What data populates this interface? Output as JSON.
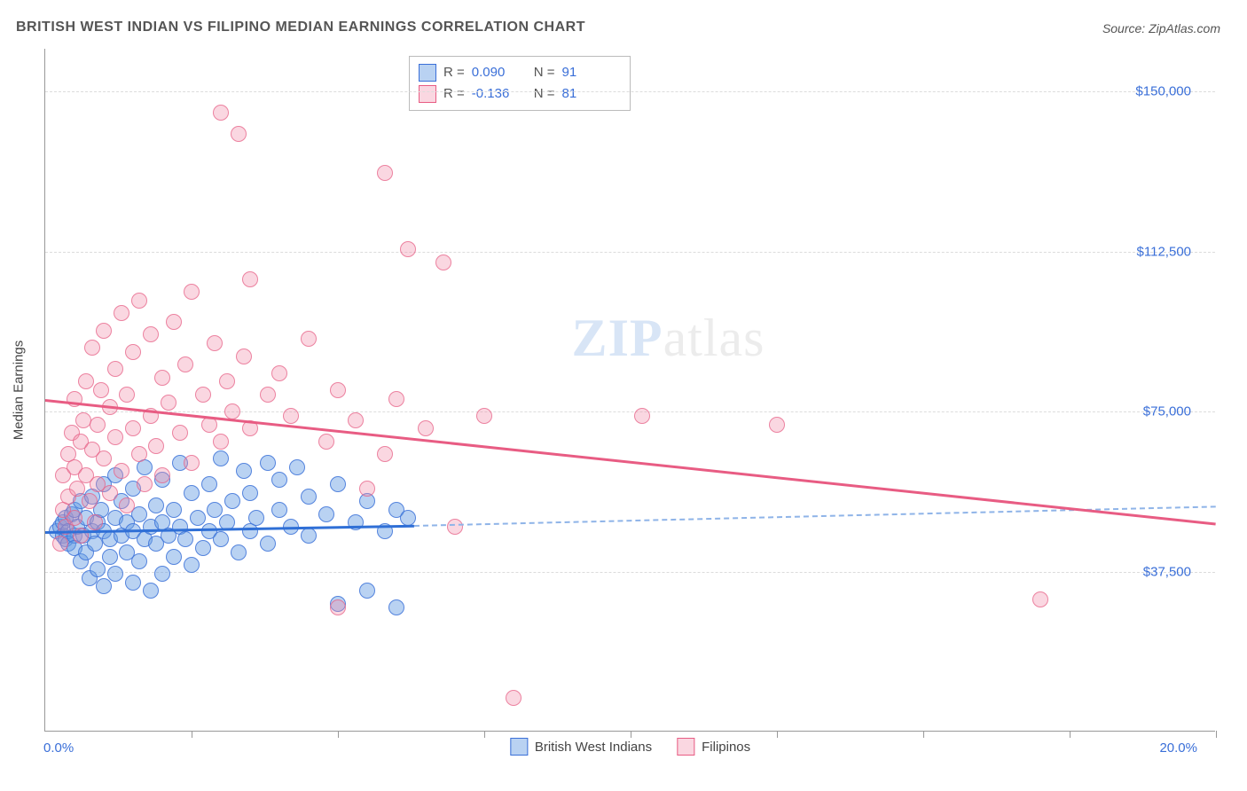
{
  "title": "BRITISH WEST INDIAN VS FILIPINO MEDIAN EARNINGS CORRELATION CHART",
  "source": "Source: ZipAtlas.com",
  "watermark_zip": "ZIP",
  "watermark_atlas": "atlas",
  "chart": {
    "type": "scatter",
    "background_color": "#ffffff",
    "grid_color": "#dcdcdc",
    "axis_color": "#999999",
    "text_color": "#555555",
    "value_color": "#3a6fd8",
    "yaxis_title": "Median Earnings",
    "xlim": [
      0,
      20
    ],
    "ylim": [
      0,
      160000
    ],
    "xlabel_min": "0.0%",
    "xlabel_max": "20.0%",
    "yticks": [
      {
        "v": 37500,
        "label": "$37,500"
      },
      {
        "v": 75000,
        "label": "$75,000"
      },
      {
        "v": 112500,
        "label": "$112,500"
      },
      {
        "v": 150000,
        "label": "$150,000"
      }
    ],
    "xticks_pos": [
      2.5,
      5,
      7.5,
      10,
      12.5,
      15,
      17.5,
      20
    ],
    "marker_radius": 9,
    "series": [
      {
        "name": "British West Indians",
        "color_fill": "rgba(99,156,227,0.45)",
        "color_stroke": "#3a6fd8",
        "r_value": "0.090",
        "n_value": "91",
        "trend": {
          "x1": 0,
          "y1": 47000,
          "x2": 6.3,
          "y2": 48500,
          "x2_extrap": 20,
          "y2_extrap": 53000
        },
        "points": [
          [
            0.2,
            47000
          ],
          [
            0.25,
            48000
          ],
          [
            0.3,
            46000
          ],
          [
            0.3,
            49000
          ],
          [
            0.35,
            45000
          ],
          [
            0.35,
            50000
          ],
          [
            0.4,
            47000
          ],
          [
            0.4,
            44000
          ],
          [
            0.45,
            51000
          ],
          [
            0.5,
            46000
          ],
          [
            0.5,
            52000
          ],
          [
            0.5,
            43000
          ],
          [
            0.55,
            48000
          ],
          [
            0.6,
            40000
          ],
          [
            0.6,
            54000
          ],
          [
            0.65,
            46000
          ],
          [
            0.7,
            42000
          ],
          [
            0.7,
            50000
          ],
          [
            0.75,
            36000
          ],
          [
            0.8,
            47000
          ],
          [
            0.8,
            55000
          ],
          [
            0.85,
            44000
          ],
          [
            0.9,
            49000
          ],
          [
            0.9,
            38000
          ],
          [
            0.95,
            52000
          ],
          [
            1.0,
            34000
          ],
          [
            1.0,
            47000
          ],
          [
            1.0,
            58000
          ],
          [
            1.1,
            45000
          ],
          [
            1.1,
            41000
          ],
          [
            1.2,
            50000
          ],
          [
            1.2,
            37000
          ],
          [
            1.2,
            60000
          ],
          [
            1.3,
            46000
          ],
          [
            1.3,
            54000
          ],
          [
            1.4,
            42000
          ],
          [
            1.4,
            49000
          ],
          [
            1.5,
            35000
          ],
          [
            1.5,
            57000
          ],
          [
            1.5,
            47000
          ],
          [
            1.6,
            51000
          ],
          [
            1.6,
            40000
          ],
          [
            1.7,
            45000
          ],
          [
            1.7,
            62000
          ],
          [
            1.8,
            48000
          ],
          [
            1.8,
            33000
          ],
          [
            1.9,
            53000
          ],
          [
            1.9,
            44000
          ],
          [
            2.0,
            49000
          ],
          [
            2.0,
            59000
          ],
          [
            2.0,
            37000
          ],
          [
            2.1,
            46000
          ],
          [
            2.2,
            52000
          ],
          [
            2.2,
            41000
          ],
          [
            2.3,
            48000
          ],
          [
            2.3,
            63000
          ],
          [
            2.4,
            45000
          ],
          [
            2.5,
            56000
          ],
          [
            2.5,
            39000
          ],
          [
            2.6,
            50000
          ],
          [
            2.7,
            43000
          ],
          [
            2.8,
            58000
          ],
          [
            2.8,
            47000
          ],
          [
            2.9,
            52000
          ],
          [
            3.0,
            45000
          ],
          [
            3.0,
            64000
          ],
          [
            3.1,
            49000
          ],
          [
            3.2,
            54000
          ],
          [
            3.3,
            42000
          ],
          [
            3.4,
            61000
          ],
          [
            3.5,
            47000
          ],
          [
            3.5,
            56000
          ],
          [
            3.6,
            50000
          ],
          [
            3.8,
            63000
          ],
          [
            3.8,
            44000
          ],
          [
            4.0,
            52000
          ],
          [
            4.0,
            59000
          ],
          [
            4.2,
            48000
          ],
          [
            4.3,
            62000
          ],
          [
            4.5,
            46000
          ],
          [
            4.5,
            55000
          ],
          [
            4.8,
            51000
          ],
          [
            5.0,
            58000
          ],
          [
            5.0,
            30000
          ],
          [
            5.3,
            49000
          ],
          [
            5.5,
            33000
          ],
          [
            5.5,
            54000
          ],
          [
            5.8,
            47000
          ],
          [
            6.0,
            52000
          ],
          [
            6.0,
            29000
          ],
          [
            6.2,
            50000
          ]
        ]
      },
      {
        "name": "Filipinos",
        "color_fill": "rgba(242,140,168,0.35)",
        "color_stroke": "#e85c83",
        "r_value": "-0.136",
        "n_value": "81",
        "trend": {
          "x1": 0,
          "y1": 78000,
          "x2": 20,
          "y2": 49000
        },
        "points": [
          [
            0.25,
            44000
          ],
          [
            0.3,
            52000
          ],
          [
            0.3,
            60000
          ],
          [
            0.35,
            48000
          ],
          [
            0.4,
            65000
          ],
          [
            0.4,
            55000
          ],
          [
            0.45,
            70000
          ],
          [
            0.5,
            50000
          ],
          [
            0.5,
            62000
          ],
          [
            0.5,
            78000
          ],
          [
            0.55,
            57000
          ],
          [
            0.6,
            68000
          ],
          [
            0.6,
            46000
          ],
          [
            0.65,
            73000
          ],
          [
            0.7,
            60000
          ],
          [
            0.7,
            82000
          ],
          [
            0.75,
            54000
          ],
          [
            0.8,
            66000
          ],
          [
            0.8,
            90000
          ],
          [
            0.85,
            49000
          ],
          [
            0.9,
            72000
          ],
          [
            0.9,
            58000
          ],
          [
            0.95,
            80000
          ],
          [
            1.0,
            64000
          ],
          [
            1.0,
            94000
          ],
          [
            1.1,
            56000
          ],
          [
            1.1,
            76000
          ],
          [
            1.2,
            69000
          ],
          [
            1.2,
            85000
          ],
          [
            1.3,
            61000
          ],
          [
            1.3,
            98000
          ],
          [
            1.4,
            53000
          ],
          [
            1.4,
            79000
          ],
          [
            1.5,
            71000
          ],
          [
            1.5,
            89000
          ],
          [
            1.6,
            65000
          ],
          [
            1.6,
            101000
          ],
          [
            1.7,
            58000
          ],
          [
            1.8,
            74000
          ],
          [
            1.8,
            93000
          ],
          [
            1.9,
            67000
          ],
          [
            2.0,
            83000
          ],
          [
            2.0,
            60000
          ],
          [
            2.1,
            77000
          ],
          [
            2.2,
            96000
          ],
          [
            2.3,
            70000
          ],
          [
            2.4,
            86000
          ],
          [
            2.5,
            63000
          ],
          [
            2.5,
            103000
          ],
          [
            2.7,
            79000
          ],
          [
            2.8,
            72000
          ],
          [
            2.9,
            91000
          ],
          [
            3.0,
            68000
          ],
          [
            3.0,
            145000
          ],
          [
            3.1,
            82000
          ],
          [
            3.2,
            75000
          ],
          [
            3.3,
            140000
          ],
          [
            3.4,
            88000
          ],
          [
            3.5,
            71000
          ],
          [
            3.5,
            106000
          ],
          [
            3.8,
            79000
          ],
          [
            4.0,
            84000
          ],
          [
            4.2,
            74000
          ],
          [
            4.5,
            92000
          ],
          [
            4.8,
            68000
          ],
          [
            5.0,
            80000
          ],
          [
            5.0,
            29000
          ],
          [
            5.3,
            73000
          ],
          [
            5.5,
            57000
          ],
          [
            5.8,
            131000
          ],
          [
            5.8,
            65000
          ],
          [
            6.0,
            78000
          ],
          [
            6.2,
            113000
          ],
          [
            6.5,
            71000
          ],
          [
            6.8,
            110000
          ],
          [
            7.0,
            48000
          ],
          [
            7.5,
            74000
          ],
          [
            8.0,
            8000
          ],
          [
            10.2,
            74000
          ],
          [
            12.5,
            72000
          ],
          [
            17.0,
            31000
          ]
        ]
      }
    ],
    "legend": [
      {
        "label": "British West Indians",
        "swatch": "blue"
      },
      {
        "label": "Filipinos",
        "swatch": "pink"
      }
    ]
  }
}
